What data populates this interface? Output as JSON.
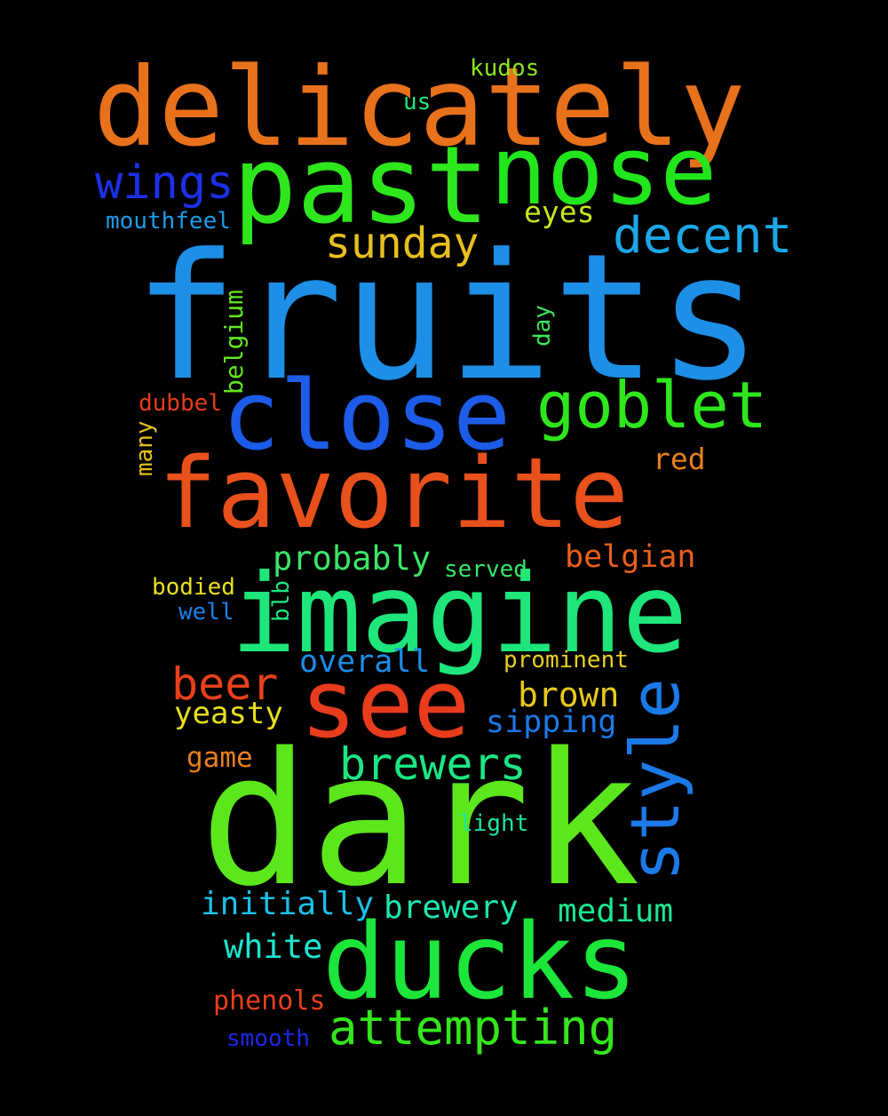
{
  "words": {
    "fruits": {
      "text": "fruits",
      "color": "#1e8fe6"
    },
    "dark": {
      "text": "dark",
      "color": "#5ce61c"
    },
    "delicately": {
      "text": "delicately",
      "color": "#e8711c"
    },
    "imagine": {
      "text": "imagine",
      "color": "#1ee67a"
    },
    "past": {
      "text": "past",
      "color": "#2ee61c"
    },
    "nose": {
      "text": "nose",
      "color": "#22e61c"
    },
    "close": {
      "text": "close",
      "color": "#1c5ce8"
    },
    "favorite": {
      "text": "favorite",
      "color": "#e8501c"
    },
    "ducks": {
      "text": "ducks",
      "color": "#1ce63a"
    },
    "see": {
      "text": "see",
      "color": "#e83c1c"
    },
    "goblet": {
      "text": "goblet",
      "color": "#2ee61c"
    },
    "style": {
      "text": "style",
      "color": "#1c7ae8"
    },
    "decent": {
      "text": "decent",
      "color": "#1ca8e8"
    },
    "sunday": {
      "text": "sunday",
      "color": "#e8c01c"
    },
    "wings": {
      "text": "wings",
      "color": "#1c30e8"
    },
    "attempting": {
      "text": "attempting",
      "color": "#34e61c"
    },
    "brewers": {
      "text": "brewers",
      "color": "#1ce684"
    },
    "beer": {
      "text": "beer",
      "color": "#e8401c"
    },
    "brown": {
      "text": "brown",
      "color": "#e8c81c"
    },
    "probably": {
      "text": "probably",
      "color": "#3ce66a"
    },
    "belgian": {
      "text": "belgian",
      "color": "#e8601c"
    },
    "overall": {
      "text": "overall",
      "color": "#1c8ce8"
    },
    "sipping": {
      "text": "sipping",
      "color": "#1c7ae8"
    },
    "yeasty": {
      "text": "yeasty",
      "color": "#e8e01c"
    },
    "brewery": {
      "text": "brewery",
      "color": "#1ce6b0"
    },
    "medium": {
      "text": "medium",
      "color": "#1ce690"
    },
    "initially": {
      "text": "initially",
      "color": "#1cc0e8"
    },
    "white": {
      "text": "white",
      "color": "#1ce6d0"
    },
    "eyes": {
      "text": "eyes",
      "color": "#c8e61c"
    },
    "red": {
      "text": "red",
      "color": "#e8801c"
    },
    "game": {
      "text": "game",
      "color": "#e8801c"
    },
    "mouthfeel": {
      "text": "mouthfeel",
      "color": "#1c9ae8"
    },
    "prominent": {
      "text": "prominent",
      "color": "#e8d01c"
    },
    "phenols": {
      "text": "phenols",
      "color": "#e8401c"
    },
    "smooth": {
      "text": "smooth",
      "color": "#1c28e8"
    },
    "light": {
      "text": "light",
      "color": "#1ce6a0"
    },
    "served": {
      "text": "served",
      "color": "#34e66a"
    },
    "bodied": {
      "text": "bodied",
      "color": "#e8e01c"
    },
    "well": {
      "text": "well",
      "color": "#1c80e8"
    },
    "kudos": {
      "text": "kudos",
      "color": "#8ce61c"
    },
    "us": {
      "text": "us",
      "color": "#1ce680"
    },
    "dubbel": {
      "text": "dubbel",
      "color": "#e83c1c"
    },
    "many": {
      "text": "many",
      "color": "#e8c01c"
    },
    "belgium": {
      "text": "belgium",
      "color": "#62e61c"
    },
    "day": {
      "text": "day",
      "color": "#3ce660"
    },
    "blb": {
      "text": "blb",
      "color": "#1ce680"
    }
  }
}
